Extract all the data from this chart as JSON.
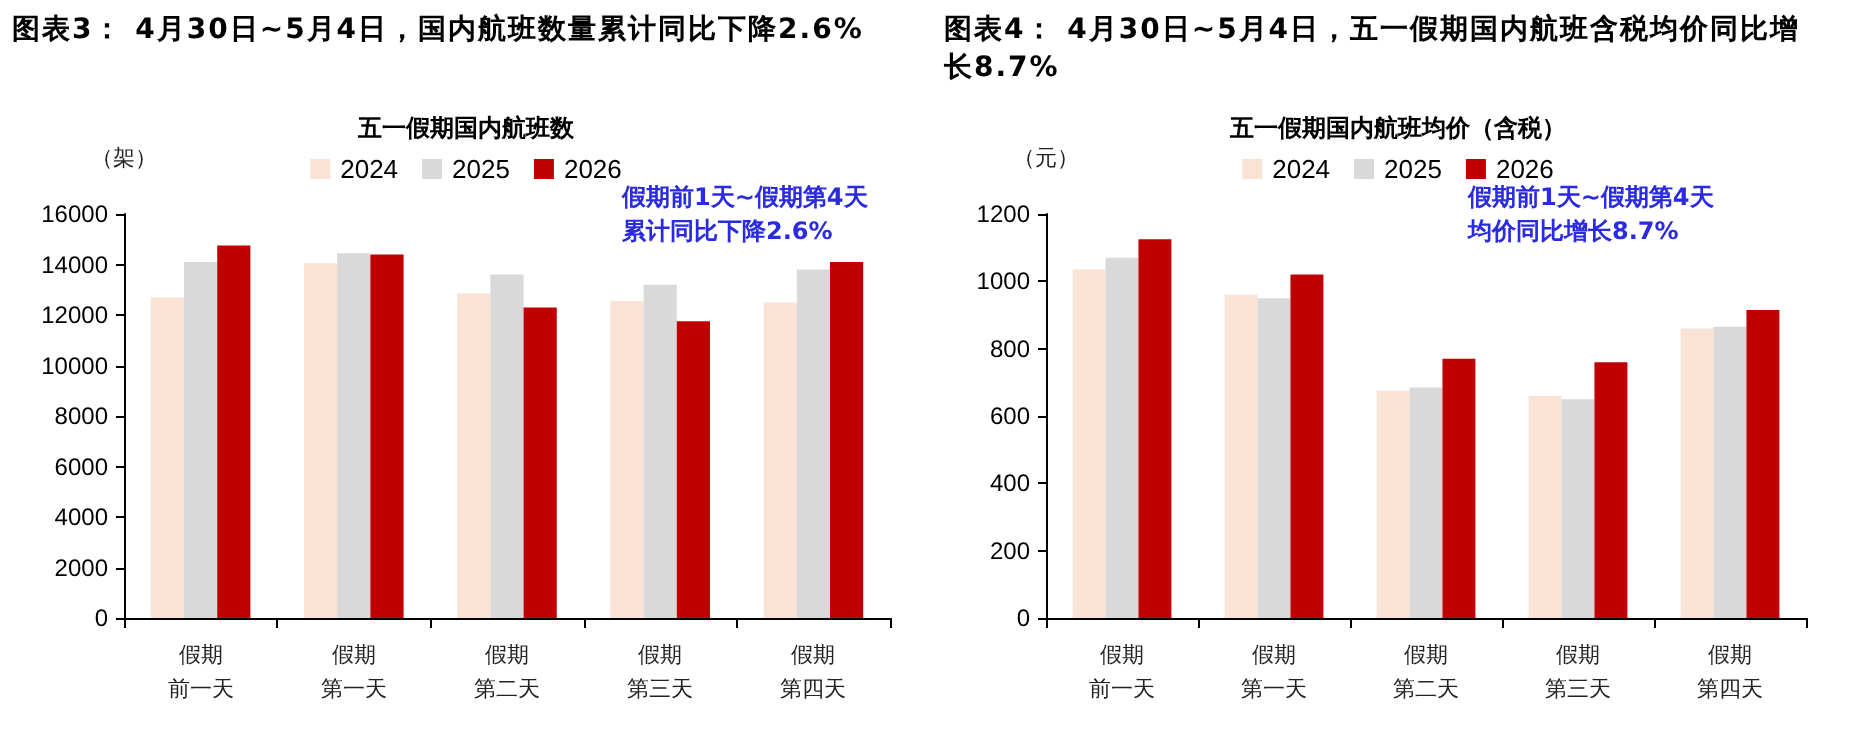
{
  "chart_data": [
    {
      "type": "bar",
      "title": "图表3： 4月30日~5月4日，国内航班数量累计同比下降2.6%",
      "subtitle": "五一假期国内航班数",
      "ylabel": "（架）",
      "categories": [
        "假期前一天",
        "假期第一天",
        "假期第二天",
        "假期第三天",
        "假期第四天"
      ],
      "series": [
        {
          "name": "2024",
          "color": "#fae3d5",
          "values": [
            12700,
            14050,
            12850,
            12550,
            12500
          ]
        },
        {
          "name": "2025",
          "color": "#d9d9d9",
          "values": [
            14100,
            14450,
            13600,
            13200,
            13800
          ]
        },
        {
          "name": "2026",
          "color": "#c00000",
          "values": [
            14750,
            14400,
            12300,
            11750,
            14100
          ]
        }
      ],
      "ylim": [
        0,
        16000
      ],
      "yticks": [
        0,
        2000,
        4000,
        6000,
        8000,
        10000,
        12000,
        14000,
        16000
      ],
      "grid": false,
      "legend": "top",
      "annotations": [
        "假期前1天~假期第4天累计同比下降2.6%"
      ]
    },
    {
      "type": "bar",
      "title": "图表4： 4月30日~5月4日，五一假期国内航班含税均价同比增长8.7%",
      "subtitle": "五一假期国内航班均价（含税）",
      "ylabel": "（元）",
      "categories": [
        "假期前一天",
        "假期第一天",
        "假期第二天",
        "假期第三天",
        "假期第四天"
      ],
      "series": [
        {
          "name": "2024",
          "color": "#fae3d5",
          "values": [
            1035,
            960,
            675,
            660,
            860
          ]
        },
        {
          "name": "2025",
          "color": "#d9d9d9",
          "values": [
            1070,
            950,
            685,
            650,
            865
          ]
        },
        {
          "name": "2026",
          "color": "#c00000",
          "values": [
            1125,
            1020,
            770,
            760,
            915
          ]
        }
      ],
      "ylim": [
        0,
        1200
      ],
      "yticks": [
        0,
        200,
        400,
        600,
        800,
        1000,
        1200
      ],
      "grid": false,
      "legend": "top",
      "annotations": [
        "假期前1天~假期第4天均价同比增长8.7%"
      ]
    }
  ]
}
